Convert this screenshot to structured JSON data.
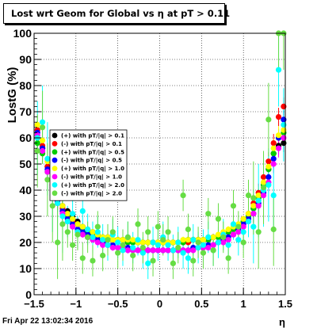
{
  "title": "Lost wrt Geom for Global vs   η at pT > 0.11",
  "footer": "Fri Apr 22 13:02:34 2016",
  "chart_data": {
    "type": "scatter",
    "title": "Lost wrt Geom for Global vs   η at pT > 0.11",
    "xlabel": "η",
    "ylabel": "LostG (%)",
    "xlim": [
      -1.5,
      1.5
    ],
    "ylim": [
      0,
      100
    ],
    "x_ticks": [
      "−1.5",
      "−1",
      "−0.5",
      "0",
      "0.5",
      "1",
      "1.5"
    ],
    "y_ticks": [
      "0",
      "10",
      "20",
      "30",
      "40",
      "50",
      "60",
      "70",
      "80",
      "90",
      "100"
    ],
    "grid": true,
    "legend_position": "left",
    "x_bins": [
      -1.46,
      -1.4,
      -1.34,
      -1.28,
      -1.22,
      -1.16,
      -1.1,
      -1.04,
      -0.98,
      -0.92,
      -0.86,
      -0.8,
      -0.74,
      -0.68,
      -0.62,
      -0.56,
      -0.5,
      -0.44,
      -0.38,
      -0.32,
      -0.26,
      -0.2,
      -0.14,
      -0.08,
      -0.02,
      0.04,
      0.1,
      0.16,
      0.22,
      0.28,
      0.34,
      0.4,
      0.46,
      0.52,
      0.58,
      0.64,
      0.7,
      0.76,
      0.82,
      0.88,
      0.94,
      1.0,
      1.06,
      1.12,
      1.18,
      1.24,
      1.3,
      1.36,
      1.42,
      1.48
    ],
    "series": [
      {
        "name": "(+) with pT/|q| > 0.1",
        "color": "#000000",
        "values": [
          60,
          56,
          49,
          42,
          37,
          34,
          32,
          30,
          28,
          26,
          25,
          24,
          23,
          22,
          22,
          21,
          21,
          21,
          21,
          20,
          20,
          20,
          20,
          20,
          20,
          20,
          20,
          20,
          20,
          20,
          21,
          21,
          21,
          21,
          21,
          22,
          22,
          23,
          24,
          25,
          26,
          28,
          30,
          33,
          37,
          42,
          48,
          54,
          57,
          58
        ]
      },
      {
        "name": "(-) with pT/|q| > 0.1",
        "color": "#ff0000",
        "values": [
          63,
          57,
          49,
          42,
          36,
          33,
          30,
          28,
          27,
          25,
          24,
          23,
          22,
          22,
          21,
          21,
          21,
          21,
          20,
          20,
          20,
          20,
          20,
          20,
          20,
          20,
          20,
          20,
          20,
          20,
          20,
          21,
          21,
          21,
          21,
          22,
          22,
          23,
          24,
          25,
          26,
          29,
          31,
          35,
          39,
          45,
          51,
          58,
          68,
          72
        ]
      },
      {
        "name": "(+) with pT/|q| > 0.5",
        "color": "#00cc00",
        "values": [
          58,
          54,
          47,
          40,
          35,
          32,
          30,
          29,
          27,
          25,
          24,
          23,
          22,
          22,
          21,
          21,
          21,
          21,
          20,
          20,
          20,
          20,
          20,
          20,
          20,
          20,
          20,
          20,
          20,
          20,
          21,
          21,
          21,
          21,
          21,
          22,
          22,
          23,
          24,
          25,
          26,
          28,
          30,
          33,
          37,
          42,
          48,
          54,
          60,
          62
        ]
      },
      {
        "name": "(-) with pT/|q| > 0.5",
        "color": "#0000ff",
        "values": [
          62,
          56,
          48,
          41,
          36,
          32,
          29,
          27,
          25,
          24,
          23,
          22,
          21,
          20,
          19,
          19,
          18,
          18,
          18,
          17,
          17,
          17,
          17,
          17,
          17,
          17,
          17,
          17,
          17,
          17,
          17,
          18,
          18,
          18,
          19,
          19,
          20,
          21,
          22,
          23,
          25,
          27,
          29,
          31,
          35,
          39,
          45,
          52,
          60,
          67
        ]
      },
      {
        "name": "(+) with pT/|q| > 1.0",
        "color": "#ffff00",
        "values": [
          65,
          59,
          51,
          43,
          38,
          34,
          31,
          29,
          27,
          26,
          25,
          24,
          23,
          22,
          22,
          21,
          21,
          21,
          21,
          21,
          20,
          20,
          20,
          20,
          20,
          20,
          20,
          20,
          20,
          21,
          21,
          21,
          21,
          21,
          22,
          22,
          23,
          24,
          25,
          26,
          27,
          29,
          31,
          34,
          38,
          43,
          49,
          56,
          61,
          63
        ]
      },
      {
        "name": "(-) with pT/|q| > 1.0",
        "color": "#ff00ff",
        "values": [
          61,
          55,
          47,
          40,
          35,
          31,
          28,
          26,
          24,
          23,
          22,
          21,
          20,
          19,
          19,
          18,
          18,
          18,
          17,
          17,
          17,
          17,
          17,
          17,
          17,
          17,
          17,
          17,
          17,
          17,
          17,
          17,
          18,
          18,
          18,
          19,
          20,
          20,
          21,
          23,
          24,
          26,
          28,
          31,
          34,
          38,
          43,
          50,
          56,
          60
        ]
      },
      {
        "name": "(+) with pT/|q| > 2.0",
        "color": "#00ffff",
        "values": [
          60,
          66,
          52,
          38,
          35,
          30,
          28,
          31,
          24,
          32,
          25,
          22,
          24,
          21,
          19,
          23,
          20,
          17,
          22,
          18,
          21,
          16,
          12,
          20,
          19,
          22,
          19,
          17,
          20,
          16,
          14,
          21,
          18,
          19,
          22,
          17,
          20,
          23,
          19,
          27,
          21,
          24,
          28,
          26,
          36,
          40,
          42,
          38,
          86,
          65
        ]
      },
      {
        "name": "(-) with pT/|q| > 2.0",
        "color": "#66dd44",
        "values": [
          55,
          64,
          44,
          34,
          20,
          27,
          24,
          19,
          23,
          14,
          22,
          13,
          26,
          15,
          21,
          24,
          16,
          19,
          22,
          15,
          27,
          18,
          24,
          13,
          26,
          21,
          24,
          12,
          18,
          38,
          25,
          13,
          20,
          16,
          31,
          17,
          29,
          22,
          14,
          34,
          26,
          20,
          38,
          37,
          24,
          41,
          67,
          25,
          100,
          100
        ]
      }
    ]
  }
}
